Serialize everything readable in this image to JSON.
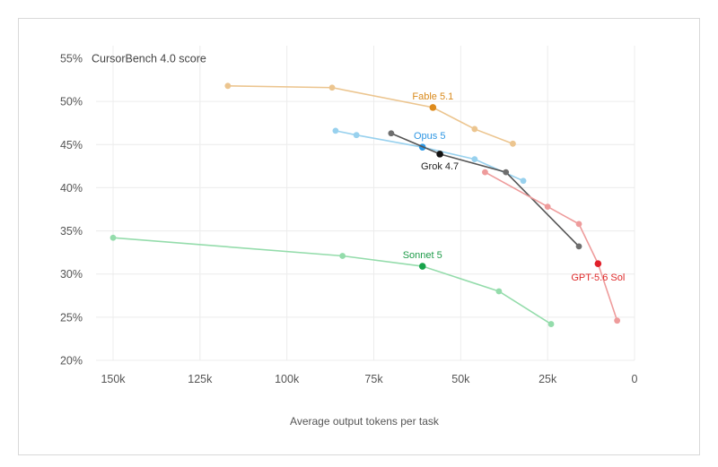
{
  "chart_data": {
    "type": "line",
    "ylabel": "CursorBench 4.0 score",
    "xlabel": "Average output tokens per task",
    "xlim": [
      0,
      160000
    ],
    "x_reversed": true,
    "ylim": [
      20,
      55
    ],
    "x_ticks": [
      150000,
      125000,
      100000,
      75000,
      50000,
      25000,
      0
    ],
    "x_tick_labels": [
      "150k",
      "125k",
      "100k",
      "75k",
      "50k",
      "25k",
      "0"
    ],
    "y_ticks": [
      20,
      25,
      30,
      35,
      40,
      45,
      50,
      55
    ],
    "y_tick_labels": [
      "20%",
      "25%",
      "30%",
      "35%",
      "40%",
      "45%",
      "50%",
      "55%"
    ],
    "grid": true,
    "series": [
      {
        "name": "Fable 5.1",
        "color": "#ecc58f",
        "highlight_color": "#de8b1c",
        "label_color": "#d98a1c",
        "x": [
          117000,
          87000,
          58000,
          46000,
          35000
        ],
        "y": [
          51.8,
          51.6,
          49.3,
          46.8,
          45.1
        ],
        "highlight_index": 2
      },
      {
        "name": "Opus 5",
        "color": "#98d1ee",
        "highlight_color": "#2998e8",
        "label_color": "#2f97e3",
        "x": [
          86000,
          80000,
          61000,
          46000,
          32000
        ],
        "y": [
          46.6,
          46.1,
          44.7,
          43.3,
          40.8
        ],
        "highlight_index": 2
      },
      {
        "name": "Grok 4.7",
        "color": "#555555",
        "highlight_color": "#111111",
        "label_color": "#222222",
        "x": [
          70000,
          56000,
          37000,
          16000
        ],
        "y": [
          46.3,
          43.9,
          41.8,
          33.2
        ],
        "highlight_index": 1,
        "point_colors": [
          "#6e6e6e",
          "#111111",
          "#6e6e6e",
          "#6e6e6e"
        ]
      },
      {
        "name": "GPT-5.6 Sol",
        "color": "#ee9b9b",
        "highlight_color": "#e0202a",
        "label_color": "#df2a2a",
        "x": [
          43000,
          25000,
          16000,
          10500,
          5000
        ],
        "y": [
          41.8,
          37.8,
          35.8,
          31.2,
          24.6
        ],
        "highlight_index": 3
      },
      {
        "name": "Sonnet 5",
        "color": "#94dcab",
        "highlight_color": "#17a34a",
        "label_color": "#1f9c4a",
        "x": [
          150000,
          84000,
          61000,
          39000,
          24000
        ],
        "y": [
          34.2,
          32.1,
          30.9,
          28.0,
          24.2
        ],
        "highlight_index": 2
      }
    ]
  }
}
